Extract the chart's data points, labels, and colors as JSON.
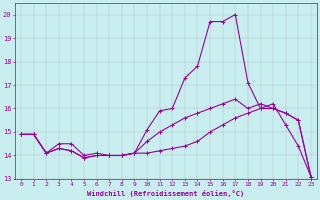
{
  "xlabel": "Windchill (Refroidissement éolien,°C)",
  "ylabel": "",
  "xlim": [
    -0.5,
    23.5
  ],
  "ylim": [
    13,
    20.5
  ],
  "xticks": [
    0,
    1,
    2,
    3,
    4,
    5,
    6,
    7,
    8,
    9,
    10,
    11,
    12,
    13,
    14,
    15,
    16,
    17,
    18,
    19,
    20,
    21,
    22,
    23
  ],
  "yticks": [
    13,
    14,
    15,
    16,
    17,
    18,
    19,
    20
  ],
  "background_color": "#c8eef0",
  "line_color": "#990099",
  "grid_color": "#b0b0b0",
  "line1_x": [
    0,
    1,
    2,
    3,
    4,
    5,
    6,
    7,
    8,
    9,
    10,
    11,
    12,
    13,
    14,
    15,
    16,
    17,
    18,
    19,
    20,
    21,
    22,
    23
  ],
  "line1_y": [
    14.9,
    14.9,
    14.1,
    14.5,
    14.5,
    14.0,
    14.1,
    14.0,
    14.0,
    14.1,
    15.1,
    15.9,
    16.0,
    17.3,
    17.8,
    19.7,
    19.7,
    20.0,
    17.1,
    16.0,
    16.2,
    15.3,
    14.4,
    13.1
  ],
  "line2_x": [
    0,
    1,
    2,
    3,
    4,
    5,
    6,
    7,
    8,
    9,
    10,
    11,
    12,
    13,
    14,
    15,
    16,
    17,
    18,
    19,
    20,
    21,
    22,
    23
  ],
  "line2_y": [
    14.9,
    14.9,
    14.1,
    14.3,
    14.2,
    13.9,
    14.0,
    14.0,
    14.0,
    14.1,
    14.1,
    14.2,
    14.3,
    14.4,
    14.6,
    15.0,
    15.3,
    15.6,
    15.8,
    16.0,
    16.0,
    15.8,
    15.5,
    13.1
  ],
  "line3_x": [
    0,
    1,
    2,
    3,
    4,
    5,
    6,
    7,
    8,
    9,
    10,
    11,
    12,
    13,
    14,
    15,
    16,
    17,
    18,
    19,
    20,
    21,
    22,
    23
  ],
  "line3_y": [
    14.9,
    14.9,
    14.1,
    14.3,
    14.2,
    13.9,
    14.0,
    14.0,
    14.0,
    14.1,
    14.6,
    15.0,
    15.3,
    15.6,
    15.8,
    16.0,
    16.2,
    16.4,
    16.0,
    16.2,
    16.0,
    15.8,
    15.5,
    13.1
  ]
}
